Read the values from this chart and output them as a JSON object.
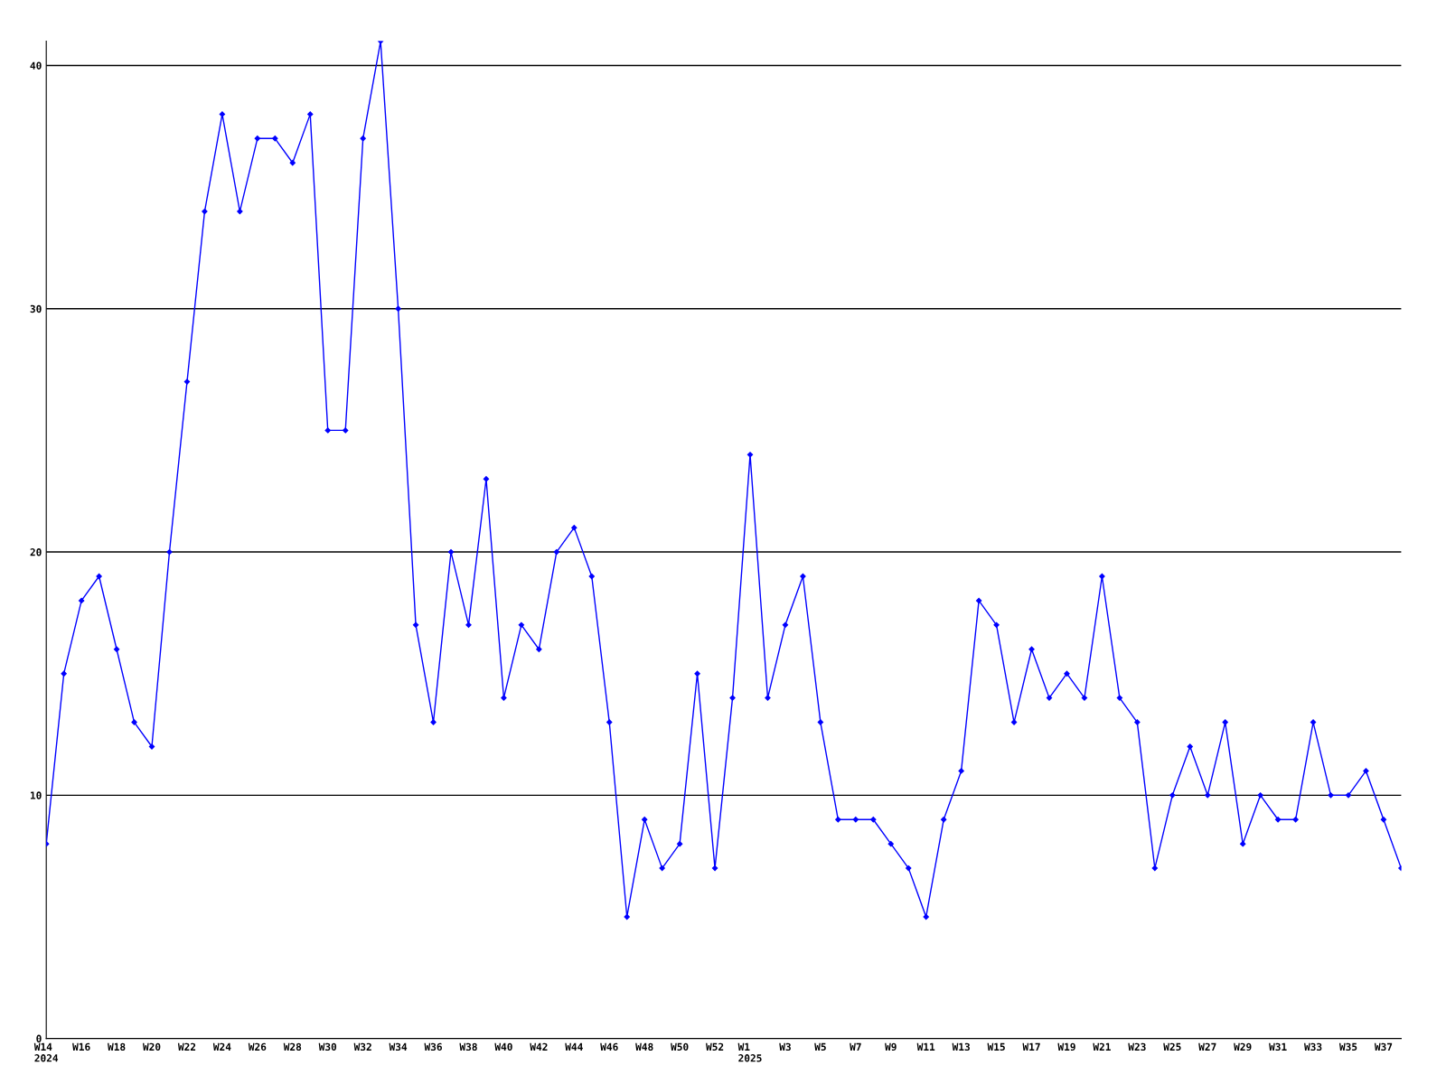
{
  "chart_data": {
    "type": "line",
    "categories": [
      "W14\n2024",
      null,
      "W16",
      null,
      "W18",
      null,
      "W20",
      null,
      "W22",
      null,
      "W24",
      null,
      "W26",
      null,
      "W28",
      null,
      "W30",
      null,
      "W32",
      null,
      "W34",
      null,
      "W36",
      null,
      "W38",
      null,
      "W40",
      null,
      "W42",
      null,
      "W44",
      null,
      "W46",
      null,
      "W48",
      null,
      "W50",
      null,
      "W52",
      null,
      "W1\n2025",
      null,
      "W3",
      null,
      "W5",
      null,
      "W7",
      null,
      "W9",
      null,
      "W11",
      null,
      "W13",
      null,
      "W15",
      null,
      "W17",
      null,
      "W19",
      null,
      "W21",
      null,
      "W23",
      null,
      "W25",
      null,
      "W27",
      null,
      "W29",
      null,
      "W31",
      null,
      "W33",
      null,
      "W35",
      null,
      "W37",
      null
    ],
    "series": [
      {
        "color": "#0000ff",
        "values": [
          8,
          15,
          18,
          19,
          16,
          13,
          12,
          20,
          27,
          34,
          38,
          34,
          37,
          37,
          36,
          38,
          25,
          25,
          37,
          41,
          30,
          17,
          13,
          20,
          17,
          23,
          14,
          17,
          16,
          20,
          21,
          19,
          13,
          5,
          9,
          7,
          8,
          15,
          7,
          14,
          24,
          14,
          17,
          19,
          13,
          9,
          9,
          9,
          8,
          7,
          5,
          9,
          11,
          18,
          17,
          13,
          16,
          14,
          15,
          14,
          19,
          14,
          13,
          7,
          10,
          12,
          10,
          13,
          8,
          10,
          9,
          9,
          13,
          10,
          10,
          11,
          9,
          7
        ]
      }
    ],
    "ylim": [
      0,
      41
    ],
    "yticks": [
      0,
      10,
      20,
      30,
      40
    ],
    "grid": "y",
    "marker": "diamond",
    "line_style": "solid"
  }
}
